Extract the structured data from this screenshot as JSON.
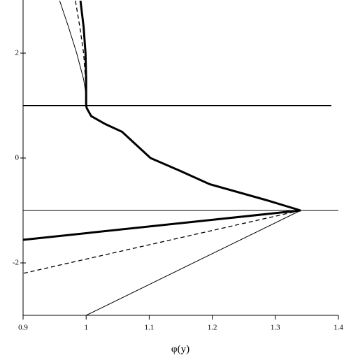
{
  "chart_data": {
    "type": "line",
    "x_label": "φ(y)",
    "xlim": [
      0.9,
      1.4
    ],
    "xticks": [
      0.9,
      1,
      1.1,
      1.2,
      1.3,
      1.4
    ],
    "ylim": [
      -3,
      3
    ],
    "yticks": [
      -2,
      0,
      2
    ],
    "hlines": [
      {
        "y": 1,
        "width": 2
      },
      {
        "y": -1,
        "width": 1
      }
    ],
    "series": [
      {
        "color": "#000000",
        "width": 3,
        "dash": false,
        "x": [
          0.991,
          0.996,
          0.999,
          1,
          1,
          1.001,
          1.008,
          1.03,
          1.057,
          1.102,
          1.15,
          1.196,
          1.285,
          1.34,
          0.9
        ],
        "y": [
          3,
          2.5,
          2,
          1.5,
          1,
          0.95,
          0.8,
          0.65,
          0.5,
          0,
          -0.25,
          -0.5,
          -0.8,
          -1,
          -1.56
        ]
      },
      {
        "color": "#000000",
        "width": 1.3,
        "dash": true,
        "x": [
          0.983,
          0.99,
          0.996,
          0.999,
          1,
          null,
          1.34,
          0.9
        ],
        "y": [
          3,
          2.5,
          2,
          1.5,
          1,
          null,
          -1,
          -2.2
        ]
      },
      {
        "color": "#000000",
        "width": 1,
        "dash": false,
        "x": [
          0.958,
          0.972,
          0.985,
          0.996,
          1,
          null,
          1.34,
          1
        ],
        "y": [
          3,
          2.5,
          2,
          1.5,
          1.2,
          null,
          -1,
          -3
        ]
      }
    ]
  }
}
